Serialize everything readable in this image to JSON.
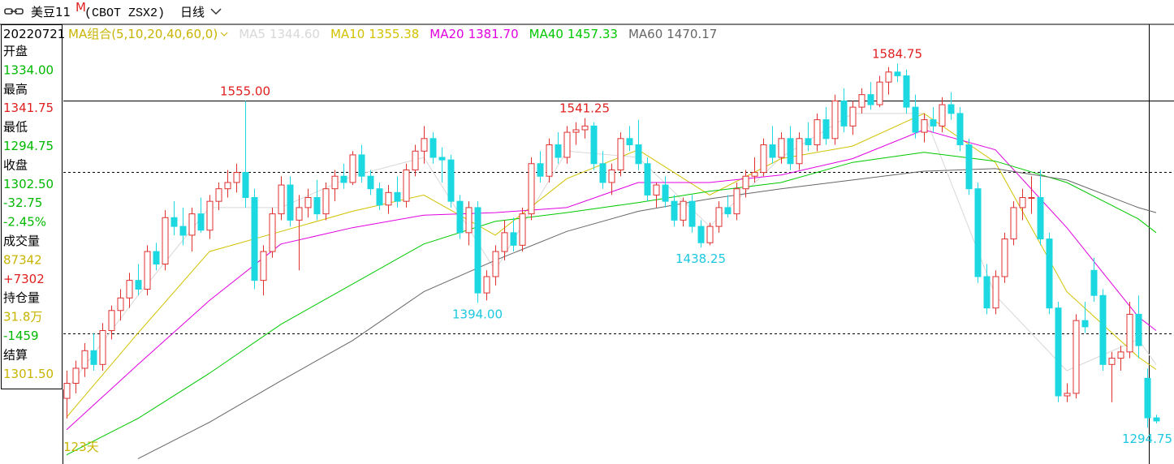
{
  "header": {
    "name": "美豆11",
    "superscript": "M",
    "code": "(CBOT ZSX2)",
    "period": "日线"
  },
  "info_panel": [
    {
      "text": "20220721",
      "color": "#000000"
    },
    {
      "text": "开盘",
      "color": "#000000"
    },
    {
      "text": "1334.00",
      "color": "#00b800"
    },
    {
      "text": "最高",
      "color": "#000000"
    },
    {
      "text": "1341.75",
      "color": "#e02020"
    },
    {
      "text": "最低",
      "color": "#000000"
    },
    {
      "text": "1294.75",
      "color": "#00b800"
    },
    {
      "text": "收盘",
      "color": "#000000"
    },
    {
      "text": "1302.50",
      "color": "#00b800"
    },
    {
      "text": "-32.75",
      "color": "#00b800"
    },
    {
      "text": "-2.45%",
      "color": "#00b800"
    },
    {
      "text": "成交量",
      "color": "#000000"
    },
    {
      "text": "87342",
      "color": "#c8b400"
    },
    {
      "text": "+7302",
      "color": "#e02020"
    },
    {
      "text": "持仓量",
      "color": "#000000"
    },
    {
      "text": "31.8万",
      "color": "#c8b400"
    },
    {
      "text": "-1459",
      "color": "#00b800"
    },
    {
      "text": "结算",
      "color": "#000000"
    },
    {
      "text": "1301.50",
      "color": "#c8b400"
    }
  ],
  "chart_data": {
    "type": "candlestick",
    "legend_title": "MA组合(5,10,20,40,60,0)",
    "day_count_label": "123天",
    "ylim": [
      1267,
      1616
    ],
    "up_color": "#e03030",
    "down_color": "#1cd8e0",
    "hlines": [
      {
        "value": 1555,
        "style": "solid"
      },
      {
        "value": 1498.25,
        "style": "dashed"
      },
      {
        "value": 1370,
        "style": "dashed"
      }
    ],
    "open": [
      1318,
      1330,
      1342,
      1356,
      1345,
      1372,
      1388,
      1398,
      1412,
      1405,
      1435,
      1425,
      1462,
      1455,
      1448,
      1465,
      1452,
      1475,
      1485,
      1490,
      1498,
      1478,
      1412,
      1435,
      1465,
      1488,
      1460,
      1470,
      1478,
      1465,
      1485,
      1495,
      1490,
      1512,
      1495,
      1485,
      1472,
      1482,
      1475,
      1500,
      1515,
      1525,
      1510,
      1508,
      1475,
      1450,
      1470,
      1402,
      1415,
      1435,
      1450,
      1440,
      1465,
      1505,
      1495,
      1520,
      1510,
      1530,
      1532,
      1535,
      1505,
      1490,
      1500,
      1525,
      1520,
      1505,
      1480,
      1488,
      1475,
      1460,
      1475,
      1455,
      1442,
      1455,
      1470,
      1465,
      1485,
      1495,
      1498,
      1520,
      1510,
      1525,
      1505,
      1525,
      1520,
      1540,
      1525,
      1555,
      1535,
      1550,
      1560,
      1552,
      1570,
      1578,
      1575,
      1550,
      1530,
      1540,
      1535,
      1552,
      1545,
      1520,
      1485,
      1415,
      1390,
      1415,
      1445,
      1470,
      1478,
      1478,
      1445,
      1390,
      1320,
      1322,
      1380,
      1420,
      1400,
      1345,
      1350,
      1355,
      1385,
      1334,
      1302.5
    ],
    "high": [
      1340,
      1348,
      1362,
      1370,
      1378,
      1392,
      1405,
      1418,
      1425,
      1440,
      1442,
      1468,
      1475,
      1470,
      1470,
      1478,
      1480,
      1490,
      1500,
      1505,
      1555,
      1485,
      1440,
      1470,
      1495,
      1495,
      1480,
      1485,
      1492,
      1490,
      1500,
      1505,
      1515,
      1520,
      1500,
      1490,
      1488,
      1495,
      1505,
      1520,
      1535,
      1530,
      1518,
      1512,
      1480,
      1475,
      1475,
      1420,
      1440,
      1460,
      1462,
      1470,
      1510,
      1515,
      1525,
      1530,
      1535,
      1538,
      1541.25,
      1538,
      1515,
      1505,
      1530,
      1535,
      1540,
      1510,
      1490,
      1495,
      1480,
      1478,
      1480,
      1460,
      1458,
      1475,
      1480,
      1490,
      1500,
      1510,
      1525,
      1535,
      1530,
      1535,
      1530,
      1538,
      1545,
      1550,
      1560,
      1565,
      1555,
      1565,
      1570,
      1575,
      1582,
      1584.75,
      1580,
      1560,
      1545,
      1550,
      1558,
      1562,
      1550,
      1525,
      1490,
      1425,
      1420,
      1450,
      1475,
      1485,
      1495,
      1500,
      1450,
      1395,
      1330,
      1385,
      1395,
      1430,
      1405,
      1355,
      1360,
      1395,
      1400,
      1341.75,
      1305
    ],
    "low": [
      1302,
      1322,
      1335,
      1340,
      1340,
      1365,
      1380,
      1390,
      1400,
      1400,
      1420,
      1420,
      1448,
      1440,
      1435,
      1450,
      1445,
      1468,
      1478,
      1482,
      1470,
      1405,
      1400,
      1430,
      1460,
      1455,
      1420,
      1462,
      1460,
      1460,
      1475,
      1485,
      1488,
      1490,
      1480,
      1468,
      1465,
      1470,
      1470,
      1495,
      1505,
      1505,
      1490,
      1470,
      1445,
      1440,
      1394,
      1396,
      1408,
      1428,
      1435,
      1435,
      1460,
      1490,
      1490,
      1505,
      1505,
      1520,
      1525,
      1500,
      1485,
      1480,
      1495,
      1515,
      1500,
      1475,
      1470,
      1470,
      1455,
      1455,
      1450,
      1438.25,
      1440,
      1450,
      1462,
      1460,
      1478,
      1490,
      1495,
      1505,
      1505,
      1500,
      1500,
      1515,
      1515,
      1520,
      1520,
      1530,
      1528,
      1545,
      1548,
      1550,
      1560,
      1570,
      1545,
      1525,
      1522,
      1530,
      1530,
      1540,
      1515,
      1480,
      1410,
      1385,
      1385,
      1410,
      1440,
      1460,
      1465,
      1440,
      1385,
      1315,
      1315,
      1318,
      1370,
      1395,
      1340,
      1315,
      1340,
      1350,
      1350,
      1294.75,
      1298
    ],
    "close": [
      1330,
      1342,
      1356,
      1345,
      1372,
      1388,
      1398,
      1412,
      1405,
      1435,
      1425,
      1462,
      1455,
      1448,
      1465,
      1452,
      1475,
      1485,
      1490,
      1498,
      1478,
      1412,
      1435,
      1465,
      1488,
      1460,
      1470,
      1478,
      1465,
      1485,
      1495,
      1490,
      1512,
      1495,
      1485,
      1472,
      1482,
      1475,
      1500,
      1515,
      1525,
      1510,
      1508,
      1475,
      1450,
      1470,
      1402,
      1415,
      1435,
      1450,
      1440,
      1465,
      1505,
      1495,
      1520,
      1510,
      1530,
      1532,
      1535,
      1505,
      1490,
      1500,
      1525,
      1520,
      1505,
      1480,
      1488,
      1475,
      1460,
      1475,
      1455,
      1442,
      1455,
      1470,
      1465,
      1485,
      1495,
      1498,
      1520,
      1510,
      1525,
      1505,
      1525,
      1520,
      1540,
      1525,
      1555,
      1535,
      1550,
      1560,
      1552,
      1570,
      1578,
      1575,
      1550,
      1530,
      1540,
      1535,
      1552,
      1545,
      1520,
      1485,
      1415,
      1390,
      1415,
      1445,
      1470,
      1478,
      1478,
      1445,
      1390,
      1320,
      1322,
      1380,
      1375,
      1400,
      1345,
      1350,
      1355,
      1385,
      1360,
      1302.5,
      1300
    ],
    "extremes": [
      {
        "kind": "high",
        "value": 1555,
        "label": "1555.00"
      },
      {
        "kind": "high",
        "value": 1541.25,
        "label": "1541.25"
      },
      {
        "kind": "high",
        "value": 1584.75,
        "label": "1584.75"
      },
      {
        "kind": "low",
        "value": 1394,
        "label": "1394.00"
      },
      {
        "kind": "low",
        "value": 1438.25,
        "label": "1438.25"
      },
      {
        "kind": "low",
        "value": 1294.75,
        "label": "1294.75"
      }
    ],
    "series": [
      {
        "name": "MA5",
        "color": "#d8d8d8",
        "legend_value": {
          "value": 1344.6,
          "label": "1344.60"
        },
        "x": [
          0,
          8,
          16,
          24,
          32,
          40,
          48,
          56,
          64,
          72,
          80,
          88,
          96,
          104,
          112,
          120,
          122
        ],
        "values": [
          1325,
          1400,
          1470,
          1470,
          1495,
          1510,
          1420,
          1515,
          1510,
          1455,
          1510,
          1545,
          1545,
          1400,
          1340,
          1365,
          1345
        ]
      },
      {
        "name": "MA10",
        "color": "#d2c200",
        "legend_value": {
          "value": 1355.38,
          "label": "1355.38"
        },
        "x": [
          0,
          8,
          16,
          24,
          32,
          40,
          48,
          56,
          64,
          72,
          80,
          88,
          96,
          104,
          112,
          120,
          122
        ],
        "values": [
          1303,
          1370,
          1435,
          1451,
          1467,
          1480,
          1448,
          1493,
          1516,
          1480,
          1509,
          1519,
          1545,
          1506,
          1403,
          1351,
          1341
        ]
      },
      {
        "name": "MA20",
        "color": "#e000e0",
        "legend_value": {
          "value": 1381.7,
          "label": "1381.70"
        },
        "x": [
          0,
          8,
          16,
          24,
          32,
          40,
          48,
          56,
          64,
          72,
          80,
          88,
          96,
          104,
          112,
          120,
          122
        ],
        "values": [
          1293,
          1345,
          1396,
          1441,
          1454,
          1464,
          1466,
          1470,
          1490,
          1490,
          1496,
          1509,
          1532,
          1516,
          1454,
          1383,
          1372
        ]
      },
      {
        "name": "MA40",
        "color": "#00c800",
        "legend_value": {
          "value": 1457.33,
          "label": "1457.33"
        },
        "x": [
          0,
          8,
          16,
          24,
          32,
          40,
          48,
          56,
          64,
          72,
          80,
          88,
          96,
          104,
          112,
          120,
          122
        ],
        "values": [
          1273,
          1302,
          1338,
          1377,
          1409,
          1441,
          1459,
          1466,
          1474,
          1483,
          1490,
          1506,
          1514,
          1507,
          1490,
          1461,
          1450
        ]
      },
      {
        "name": "MA60",
        "color": "#666666",
        "legend_value": {
          "value": 1470.17,
          "label": "1470.17"
        },
        "x": [
          8,
          16,
          24,
          32,
          40,
          48,
          56,
          64,
          72,
          80,
          88,
          96,
          104,
          112,
          120,
          122
        ],
        "values": [
          1270,
          1299,
          1332,
          1364,
          1403,
          1428,
          1451,
          1467,
          1477,
          1485,
          1492,
          1499,
          1501,
          1492,
          1470,
          1466
        ]
      }
    ]
  }
}
